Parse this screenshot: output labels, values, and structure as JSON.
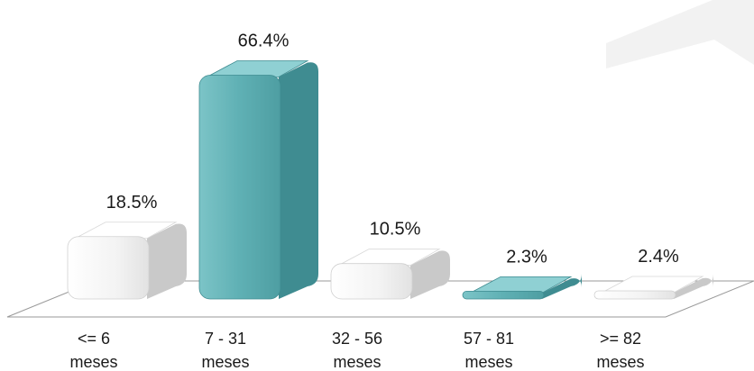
{
  "chart_data": {
    "type": "bar",
    "title": "",
    "xlabel": "",
    "ylabel": "",
    "categories": [
      [
        "<= 6",
        "meses"
      ],
      [
        "7 - 31",
        "meses"
      ],
      [
        "32 - 56",
        "meses"
      ],
      [
        "57 - 81",
        "meses"
      ],
      [
        ">= 82",
        "meses"
      ]
    ],
    "values": [
      18.5,
      66.4,
      10.5,
      2.3,
      2.4
    ],
    "data_labels": [
      "18.5%",
      "66.4%",
      "10.5%",
      "2.3%",
      "2.4%"
    ],
    "unit": "%",
    "ylim": [
      0,
      70
    ],
    "bar_styles": [
      "white",
      "teal",
      "white",
      "teal",
      "white"
    ],
    "grid": false,
    "legend": "none",
    "style": "3d"
  },
  "colors": {
    "teal_front": "#5fb0b4",
    "teal_side": "#3f8c91",
    "teal_top": "#8fd0d3",
    "white_front": "#f7f7f7",
    "white_side": "#c9c9c9",
    "white_top": "#ffffff",
    "floor_line": "#9a9a9a",
    "decor_shape": "#f0f0f0"
  }
}
